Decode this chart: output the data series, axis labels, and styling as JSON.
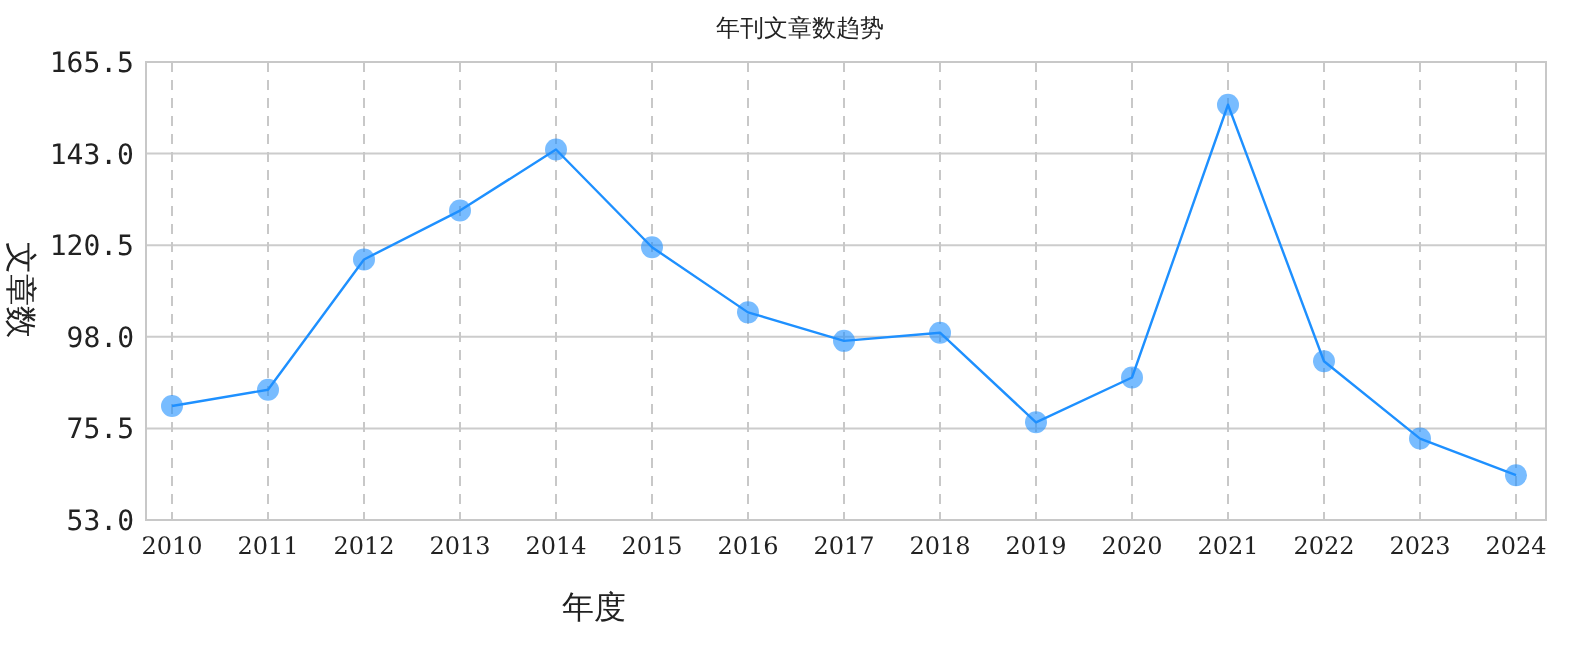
{
  "chart_data": {
    "type": "line",
    "title": "年刊文章数趋势",
    "xlabel": "年度",
    "ylabel": "文章数",
    "categories": [
      "2010",
      "2011",
      "2012",
      "2013",
      "2014",
      "2015",
      "2016",
      "2017",
      "2018",
      "2019",
      "2020",
      "2021",
      "2022",
      "2023",
      "2024"
    ],
    "series": [
      {
        "color": "#1e90ff",
        "values": [
          81,
          85,
          117,
          129,
          144,
          120,
          104,
          97,
          99,
          77,
          88,
          155,
          92,
          73,
          64
        ]
      }
    ],
    "ylim": [
      53,
      165.5
    ],
    "yticks": [
      {
        "value": 53,
        "label": "53.0"
      },
      {
        "value": 75.5,
        "label": "75.5"
      },
      {
        "value": 98,
        "label": "98.0"
      },
      {
        "value": 120.5,
        "label": "120.5"
      },
      {
        "value": 143,
        "label": "143.0"
      },
      {
        "value": 165.5,
        "label": "165.5"
      }
    ],
    "grid": true,
    "marker": "circle",
    "line_style": "solid"
  }
}
